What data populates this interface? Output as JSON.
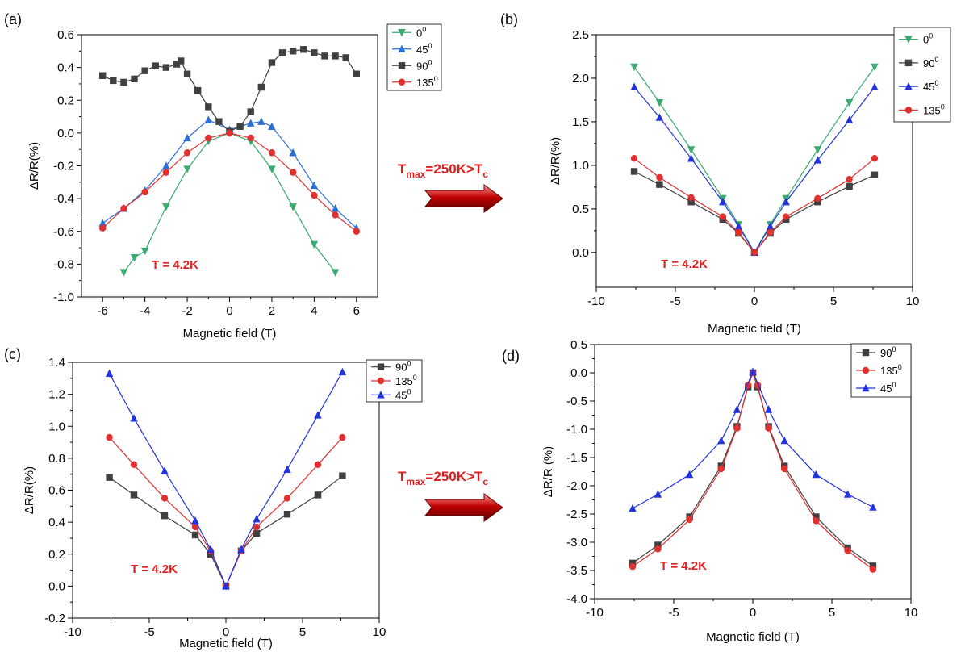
{
  "arrows": [
    {
      "text_main": "T",
      "text_sub1": "max",
      "text_mid": "=250K>T",
      "text_sub2": "c"
    },
    {
      "text_main": "T",
      "text_sub1": "max",
      "text_mid": "=250K>T",
      "text_sub2": "c"
    }
  ],
  "chart_data": [
    {
      "panel": "(a)",
      "type": "line",
      "xlabel": "Magnetic field (T)",
      "ylabel": "ΔR/R(%)",
      "xlim": [
        -7,
        7
      ],
      "ylim": [
        -1.0,
        0.6
      ],
      "xticks": [
        -6,
        -4,
        -2,
        0,
        2,
        4,
        6
      ],
      "yticks": [
        -1.0,
        -0.8,
        -0.6,
        -0.4,
        -0.2,
        0.0,
        0.2,
        0.4,
        0.6
      ],
      "ytick_labels": [
        "-1.0",
        "-0.8",
        "-0.6",
        "-0.4",
        "-0.2",
        "0.0",
        "0.2",
        "0.4",
        "0.6"
      ],
      "annotation": "T = 4.2K",
      "legend_position": "top-right",
      "series": [
        {
          "name": "0",
          "sup": "0",
          "color": "#3aaa6e",
          "marker": "triangle-down",
          "x": [
            -5.0,
            -4.5,
            -4.0,
            -3.0,
            -2.0,
            -1.0,
            0.0,
            1.0,
            2.0,
            3.0,
            4.0,
            5.0
          ],
          "y": [
            -0.85,
            -0.76,
            -0.72,
            -0.45,
            -0.22,
            -0.05,
            0.0,
            -0.05,
            -0.22,
            -0.45,
            -0.68,
            -0.85
          ]
        },
        {
          "name": "45",
          "sup": "0",
          "color": "#2b6fd6",
          "marker": "triangle-up",
          "x": [
            -6.0,
            -5.0,
            -4.0,
            -3.0,
            -2.0,
            -1.0,
            0.0,
            1.0,
            1.5,
            2.0,
            3.0,
            4.0,
            5.0,
            6.0
          ],
          "y": [
            -0.55,
            -0.46,
            -0.35,
            -0.2,
            -0.03,
            0.08,
            0.02,
            0.06,
            0.07,
            0.04,
            -0.12,
            -0.32,
            -0.46,
            -0.58
          ]
        },
        {
          "name": "90",
          "sup": "0",
          "color": "#404040",
          "marker": "square",
          "x": [
            -6.0,
            -5.5,
            -5.0,
            -4.5,
            -4.0,
            -3.5,
            -3.0,
            -2.5,
            -2.3,
            -2.0,
            -1.5,
            -1.0,
            -0.5,
            0.0,
            0.5,
            1.0,
            1.5,
            2.0,
            2.5,
            3.0,
            3.5,
            4.0,
            4.5,
            5.0,
            5.5,
            6.0
          ],
          "y": [
            0.35,
            0.32,
            0.31,
            0.33,
            0.38,
            0.41,
            0.4,
            0.42,
            0.44,
            0.36,
            0.26,
            0.16,
            0.07,
            0.01,
            0.04,
            0.13,
            0.28,
            0.43,
            0.49,
            0.5,
            0.51,
            0.49,
            0.47,
            0.47,
            0.46,
            0.36
          ]
        },
        {
          "name": "135",
          "sup": "0",
          "color": "#e03030",
          "marker": "circle",
          "x": [
            -6.0,
            -5.0,
            -4.0,
            -3.0,
            -2.0,
            -1.0,
            0.0,
            1.0,
            2.0,
            3.0,
            4.0,
            5.0,
            6.0
          ],
          "y": [
            -0.58,
            -0.46,
            -0.36,
            -0.24,
            -0.12,
            -0.03,
            0.0,
            -0.03,
            -0.12,
            -0.24,
            -0.38,
            -0.5,
            -0.6
          ]
        }
      ]
    },
    {
      "panel": "(b)",
      "type": "line",
      "xlabel": "Magnetic field (T)",
      "ylabel": "ΔR/R(%)",
      "xlim": [
        -10,
        10
      ],
      "ylim": [
        -0.4,
        2.5
      ],
      "xticks": [
        -10,
        -5,
        0,
        5,
        10
      ],
      "yticks": [
        0.0,
        0.5,
        1.0,
        1.5,
        2.0,
        2.5
      ],
      "ytick_labels": [
        "0.0",
        "0.5",
        "1.0",
        "1.5",
        "2.0",
        "2.5"
      ],
      "annotation": "T = 4.2K",
      "legend_position": "top-right",
      "series": [
        {
          "name": "0",
          "sup": "0",
          "color": "#3aaa6e",
          "marker": "triangle-down",
          "x": [
            -7.6,
            -6,
            -4,
            -2,
            -1,
            0,
            1,
            2,
            4,
            6,
            7.6
          ],
          "y": [
            2.13,
            1.72,
            1.18,
            0.62,
            0.32,
            0.0,
            0.32,
            0.62,
            1.18,
            1.72,
            2.13
          ]
        },
        {
          "name": "90",
          "sup": "0",
          "color": "#404040",
          "marker": "square",
          "x": [
            -7.6,
            -6,
            -4,
            -2,
            -1,
            0,
            1,
            2,
            4,
            6,
            7.6
          ],
          "y": [
            0.93,
            0.78,
            0.58,
            0.38,
            0.22,
            0.0,
            0.22,
            0.38,
            0.58,
            0.76,
            0.89
          ]
        },
        {
          "name": "45",
          "sup": "0",
          "color": "#2233dd",
          "marker": "triangle-up",
          "x": [
            -7.6,
            -6,
            -4,
            -2,
            -1,
            0,
            1,
            2,
            4,
            6,
            7.6
          ],
          "y": [
            1.9,
            1.55,
            1.08,
            0.58,
            0.3,
            0.0,
            0.3,
            0.58,
            1.06,
            1.52,
            1.9
          ]
        },
        {
          "name": "135",
          "sup": "0",
          "color": "#e03030",
          "marker": "circle",
          "x": [
            -7.6,
            -6,
            -4,
            -2,
            -1,
            0,
            1,
            2,
            4,
            6,
            7.6
          ],
          "y": [
            1.08,
            0.86,
            0.63,
            0.41,
            0.23,
            0.0,
            0.23,
            0.41,
            0.62,
            0.84,
            1.08
          ]
        }
      ]
    },
    {
      "panel": "(c)",
      "type": "line",
      "xlabel": "Magnetic field (T)",
      "ylabel": "ΔR/R(%)",
      "xlim": [
        -10,
        10
      ],
      "ylim": [
        -0.2,
        1.4
      ],
      "xticks": [
        -10,
        -5,
        0,
        5,
        10
      ],
      "yticks": [
        -0.2,
        0.0,
        0.2,
        0.4,
        0.6,
        0.8,
        1.0,
        1.2,
        1.4
      ],
      "ytick_labels": [
        "-0.2",
        "0.0",
        "0.2",
        "0.4",
        "0.6",
        "0.8",
        "1.0",
        "1.2",
        "1.4"
      ],
      "annotation": "T = 4.2K",
      "legend_position": "top-right",
      "series": [
        {
          "name": "90",
          "sup": "0",
          "color": "#404040",
          "marker": "square",
          "x": [
            -7.6,
            -6,
            -4,
            -2,
            -1,
            0,
            1,
            2,
            4,
            6,
            7.6
          ],
          "y": [
            0.68,
            0.57,
            0.44,
            0.32,
            0.2,
            0.0,
            0.22,
            0.33,
            0.45,
            0.57,
            0.69
          ]
        },
        {
          "name": "135",
          "sup": "0",
          "color": "#e03030",
          "marker": "circle",
          "x": [
            -7.6,
            -6,
            -4,
            -2,
            -1,
            0,
            1,
            2,
            4,
            6,
            7.6
          ],
          "y": [
            0.93,
            0.76,
            0.55,
            0.37,
            0.22,
            0.0,
            0.22,
            0.37,
            0.55,
            0.76,
            0.93
          ]
        },
        {
          "name": "45",
          "sup": "0",
          "color": "#2233dd",
          "marker": "triangle-up",
          "x": [
            -7.6,
            -6,
            -4,
            -2,
            -1,
            0,
            1,
            2,
            4,
            6,
            7.6
          ],
          "y": [
            1.33,
            1.05,
            0.72,
            0.41,
            0.23,
            0.0,
            0.23,
            0.42,
            0.73,
            1.07,
            1.34
          ]
        }
      ]
    },
    {
      "panel": "(d)",
      "type": "line",
      "xlabel": "Magnetic field (T)",
      "ylabel": "ΔR/R (%)",
      "xlim": [
        -10,
        10
      ],
      "ylim": [
        -4.0,
        0.5
      ],
      "xticks": [
        -10,
        -5,
        0,
        5,
        10
      ],
      "yticks": [
        -4.0,
        -3.5,
        -3.0,
        -2.5,
        -2.0,
        -1.5,
        -1.0,
        -0.5,
        0.0,
        0.5
      ],
      "ytick_labels": [
        "-4.0",
        "-3.5",
        "-3.0",
        "-2.5",
        "-2.0",
        "-1.5",
        "-1.0",
        "-0.5",
        "0.0",
        "0.5"
      ],
      "annotation": "T = 4.2K",
      "legend_position": "top-right",
      "series": [
        {
          "name": "90",
          "sup": "0",
          "color": "#404040",
          "marker": "square",
          "x": [
            -7.6,
            -6,
            -4,
            -2,
            -1,
            -0.3,
            0,
            0.3,
            1,
            2,
            4,
            6,
            7.6
          ],
          "y": [
            -3.37,
            -3.05,
            -2.55,
            -1.65,
            -0.95,
            -0.25,
            0.0,
            -0.25,
            -0.95,
            -1.65,
            -2.55,
            -3.1,
            -3.42
          ]
        },
        {
          "name": "135",
          "sup": "0",
          "color": "#e03030",
          "marker": "circle",
          "x": [
            -7.6,
            -6,
            -4,
            -2,
            -1,
            -0.3,
            0,
            0.3,
            1,
            2,
            4,
            6,
            7.6
          ],
          "y": [
            -3.43,
            -3.12,
            -2.6,
            -1.7,
            -0.98,
            -0.22,
            0.0,
            -0.22,
            -0.98,
            -1.7,
            -2.62,
            -3.15,
            -3.48
          ]
        },
        {
          "name": "45",
          "sup": "0",
          "color": "#2233dd",
          "marker": "triangle-up",
          "x": [
            -7.6,
            -6,
            -4,
            -2,
            -1,
            0,
            1,
            2,
            4,
            6,
            7.6
          ],
          "y": [
            -2.4,
            -2.15,
            -1.8,
            -1.2,
            -0.65,
            0.02,
            -0.65,
            -1.2,
            -1.8,
            -2.15,
            -2.38
          ]
        }
      ]
    }
  ]
}
